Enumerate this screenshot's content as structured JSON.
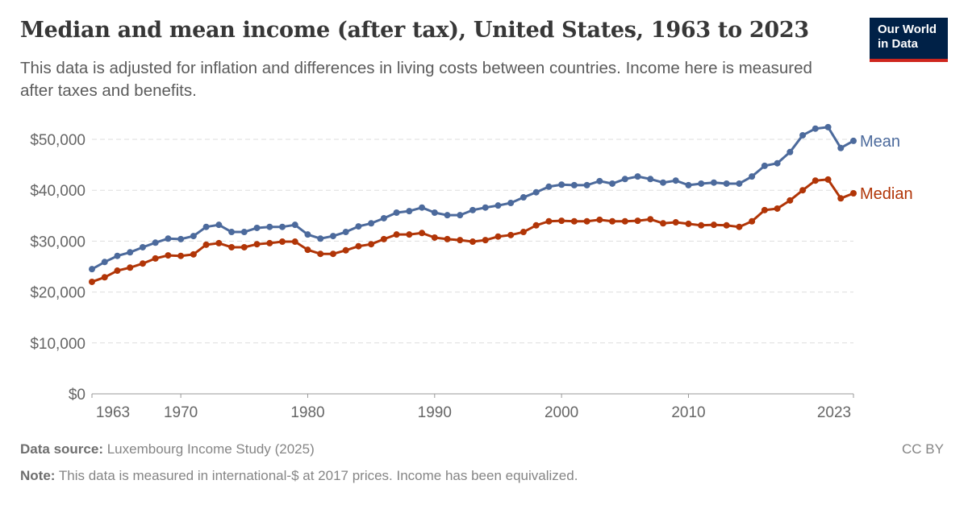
{
  "header": {
    "title": "Median and mean income (after tax), United States, 1963 to 2023",
    "subtitle": "This data is adjusted for inflation and differences in living costs between countries. Income here is measured after taxes and benefits.",
    "logo": "Our World in Data"
  },
  "footer": {
    "source_label": "Data source:",
    "source": "Luxembourg Income Study (2025)",
    "note_label": "Note:",
    "note": "This data is measured in international-$ at 2017 prices. Income has been equivalized.",
    "license": "CC BY"
  },
  "colors": {
    "mean": "#4c6a9c",
    "median": "#b13507"
  },
  "chart_data": {
    "type": "line",
    "title": "Median and mean income (after tax), United States, 1963 to 2023",
    "xlim": [
      1963,
      2023
    ],
    "ylim": [
      0,
      50000
    ],
    "grid": "horizontal dashed",
    "legend": "inline-right",
    "x_ticks": [
      "1963",
      "1970",
      "1980",
      "1990",
      "2000",
      "2010",
      "2023"
    ],
    "y_ticks": [
      "$0",
      "$10,000",
      "$20,000",
      "$30,000",
      "$40,000",
      "$50,000"
    ],
    "x": [
      1963,
      1964,
      1965,
      1966,
      1967,
      1968,
      1969,
      1970,
      1971,
      1972,
      1973,
      1974,
      1975,
      1976,
      1977,
      1978,
      1979,
      1980,
      1981,
      1982,
      1983,
      1984,
      1985,
      1986,
      1987,
      1988,
      1989,
      1990,
      1991,
      1992,
      1993,
      1994,
      1995,
      1996,
      1997,
      1998,
      1999,
      2000,
      2001,
      2002,
      2003,
      2004,
      2005,
      2006,
      2007,
      2008,
      2009,
      2010,
      2011,
      2012,
      2013,
      2014,
      2015,
      2016,
      2017,
      2018,
      2019,
      2020,
      2021,
      2022,
      2023
    ],
    "series": [
      {
        "name": "Mean",
        "values": [
          24500,
          25900,
          27100,
          27800,
          28800,
          29700,
          30500,
          30400,
          31000,
          32800,
          33200,
          31800,
          31800,
          32600,
          32800,
          32800,
          33200,
          31300,
          30500,
          31000,
          31800,
          32900,
          33500,
          34500,
          35600,
          35900,
          36600,
          35600,
          35100,
          35100,
          36100,
          36600,
          37000,
          37500,
          38600,
          39600,
          40700,
          41100,
          41000,
          41000,
          41800,
          41300,
          42200,
          42700,
          42200,
          41500,
          41900,
          41000,
          41300,
          41500,
          41300,
          41300,
          42700,
          44800,
          45300,
          47500,
          50800,
          52100,
          52400,
          48300,
          49700
        ]
      },
      {
        "name": "Median",
        "values": [
          22000,
          22900,
          24200,
          24800,
          25600,
          26600,
          27200,
          27100,
          27400,
          29300,
          29600,
          28800,
          28800,
          29400,
          29600,
          29900,
          29900,
          28300,
          27500,
          27500,
          28200,
          29000,
          29400,
          30400,
          31300,
          31300,
          31600,
          30700,
          30400,
          30200,
          29900,
          30200,
          30900,
          31200,
          31800,
          33100,
          33900,
          34000,
          33900,
          33900,
          34200,
          33900,
          33900,
          34000,
          34300,
          33500,
          33700,
          33400,
          33100,
          33200,
          33100,
          32800,
          33900,
          36100,
          36400,
          38000,
          40000,
          41900,
          42100,
          38400,
          39400
        ]
      }
    ]
  }
}
